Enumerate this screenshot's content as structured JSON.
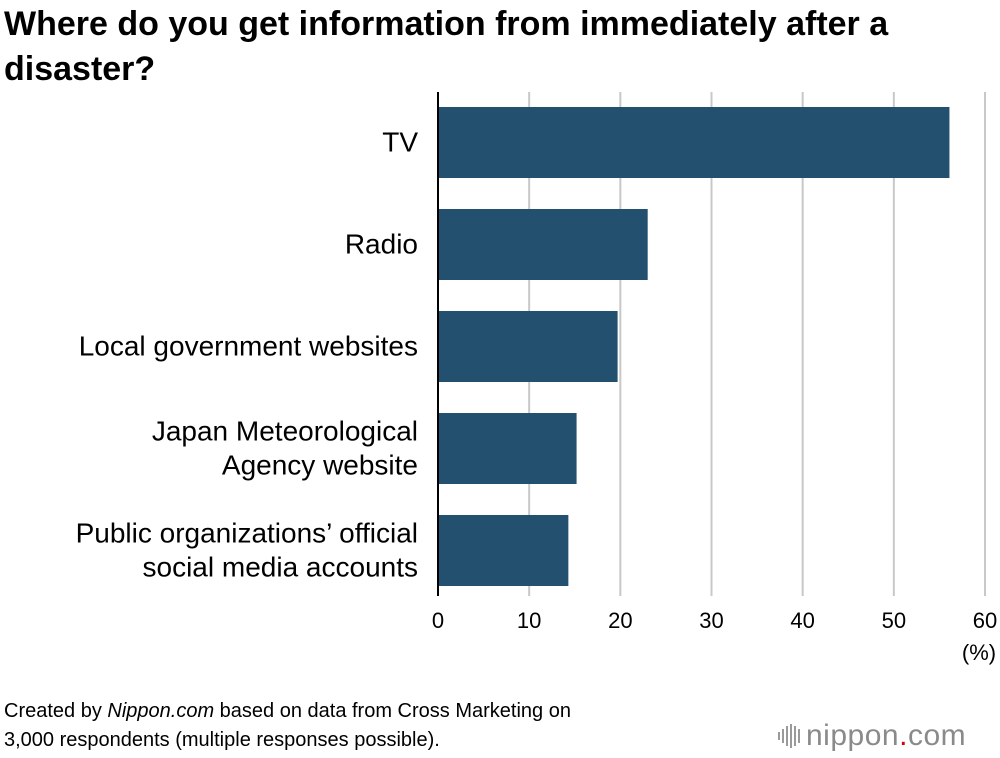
{
  "title": "Where do you get information from immediately after a disaster?",
  "chart_data": {
    "type": "bar",
    "orientation": "horizontal",
    "title": "Where do you get information from immediately after a disaster?",
    "categories": [
      [
        "TV"
      ],
      [
        "Radio"
      ],
      [
        "Local government websites"
      ],
      [
        "Japan Meteorological",
        "Agency website"
      ],
      [
        "Public organizations’ official",
        "social media accounts"
      ]
    ],
    "values": [
      56.1,
      23.0,
      19.7,
      15.2,
      14.3
    ],
    "xlim": [
      0,
      60
    ],
    "xticks": [
      "0",
      "10",
      "20",
      "30",
      "40",
      "50",
      "60"
    ],
    "xlabel": "(%)",
    "grid": true,
    "bar_color": "#23506f"
  },
  "footer": {
    "prefix": "Created by ",
    "source_name": "Nippon.com",
    "suffix_line1": " based on data from Cross Marketing on",
    "line2": "3,000 respondents (multiple responses possible)."
  },
  "logo": {
    "name": "nippon",
    "dot": ".",
    "domain": "com"
  }
}
